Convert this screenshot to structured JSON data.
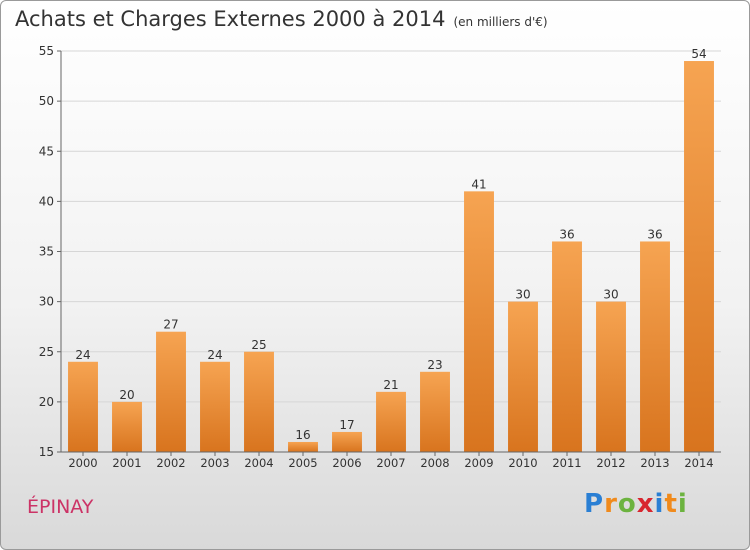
{
  "title": "Achats et Charges Externes 2000 à 2014",
  "unit_note": "(en milliers d'€)",
  "place": "ÉPINAY",
  "logo": {
    "letters": [
      "P",
      "r",
      "o",
      "x",
      "i",
      "t",
      "i"
    ],
    "colors": [
      "#2a7fd4",
      "#f08a1c",
      "#6cb33f",
      "#d8262f",
      "#2a7fd4",
      "#f08a1c",
      "#6cb33f"
    ]
  },
  "colors": {
    "bar_light": "#f6a452",
    "bar_dark": "#d8741e",
    "axis": "#666666",
    "grid": "#d6d6d6"
  },
  "chart_data": {
    "type": "bar",
    "categories": [
      "2000",
      "2001",
      "2002",
      "2003",
      "2004",
      "2005",
      "2006",
      "2007",
      "2008",
      "2009",
      "2010",
      "2011",
      "2012",
      "2013",
      "2014"
    ],
    "values": [
      24,
      20,
      27,
      24,
      25,
      16,
      17,
      21,
      23,
      41,
      30,
      36,
      30,
      36,
      54
    ],
    "ylim": [
      15,
      55
    ],
    "yticks": [
      15,
      20,
      25,
      30,
      35,
      40,
      45,
      50,
      55
    ],
    "grid": true
  }
}
